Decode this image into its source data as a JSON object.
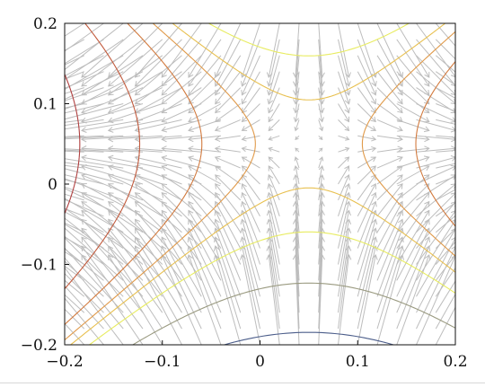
{
  "chart_data": {
    "type": "quiver-contour",
    "title": "",
    "xlabel": "",
    "ylabel": "",
    "xlim": [
      -0.2,
      0.2
    ],
    "ylim": [
      -0.2,
      0.2
    ],
    "x_ticks": [
      -0.2,
      -0.1,
      0,
      0.1,
      0.2
    ],
    "y_ticks": [
      -0.2,
      -0.1,
      0,
      0.1,
      0.2
    ],
    "x_tick_labels": [
      "−0.2",
      "−0.1",
      "0",
      "0.1",
      "0.2"
    ],
    "y_tick_labels": [
      "−0.2",
      "−0.1",
      "0",
      "0.1",
      "0.2"
    ],
    "grid": false,
    "legend": "none",
    "field": {
      "description_formula": "gradient of f(x,y) = (x - y) * (x + y - 0.1)",
      "arrow_grid_step": 0.02,
      "arrow_color": "#bdbdbd"
    },
    "contours": {
      "function": "f(x,y) = (x - y) * (x + y - 0.1)",
      "levels": [
        {
          "value": -0.0825,
          "color": "#2a3cb0"
        },
        {
          "value": -0.055,
          "color": "#4b5d8a"
        },
        {
          "value": -0.03,
          "color": "#9a9a80"
        },
        {
          "value": -0.012,
          "color": "#e8ec60"
        },
        {
          "value": -0.003,
          "color": "#e8c050"
        },
        {
          "value": 0.003,
          "color": "#e09a4a"
        },
        {
          "value": 0.012,
          "color": "#d27a3e"
        },
        {
          "value": 0.03,
          "color": "#c25a3c"
        },
        {
          "value": 0.055,
          "color": "#b04040"
        }
      ]
    }
  }
}
